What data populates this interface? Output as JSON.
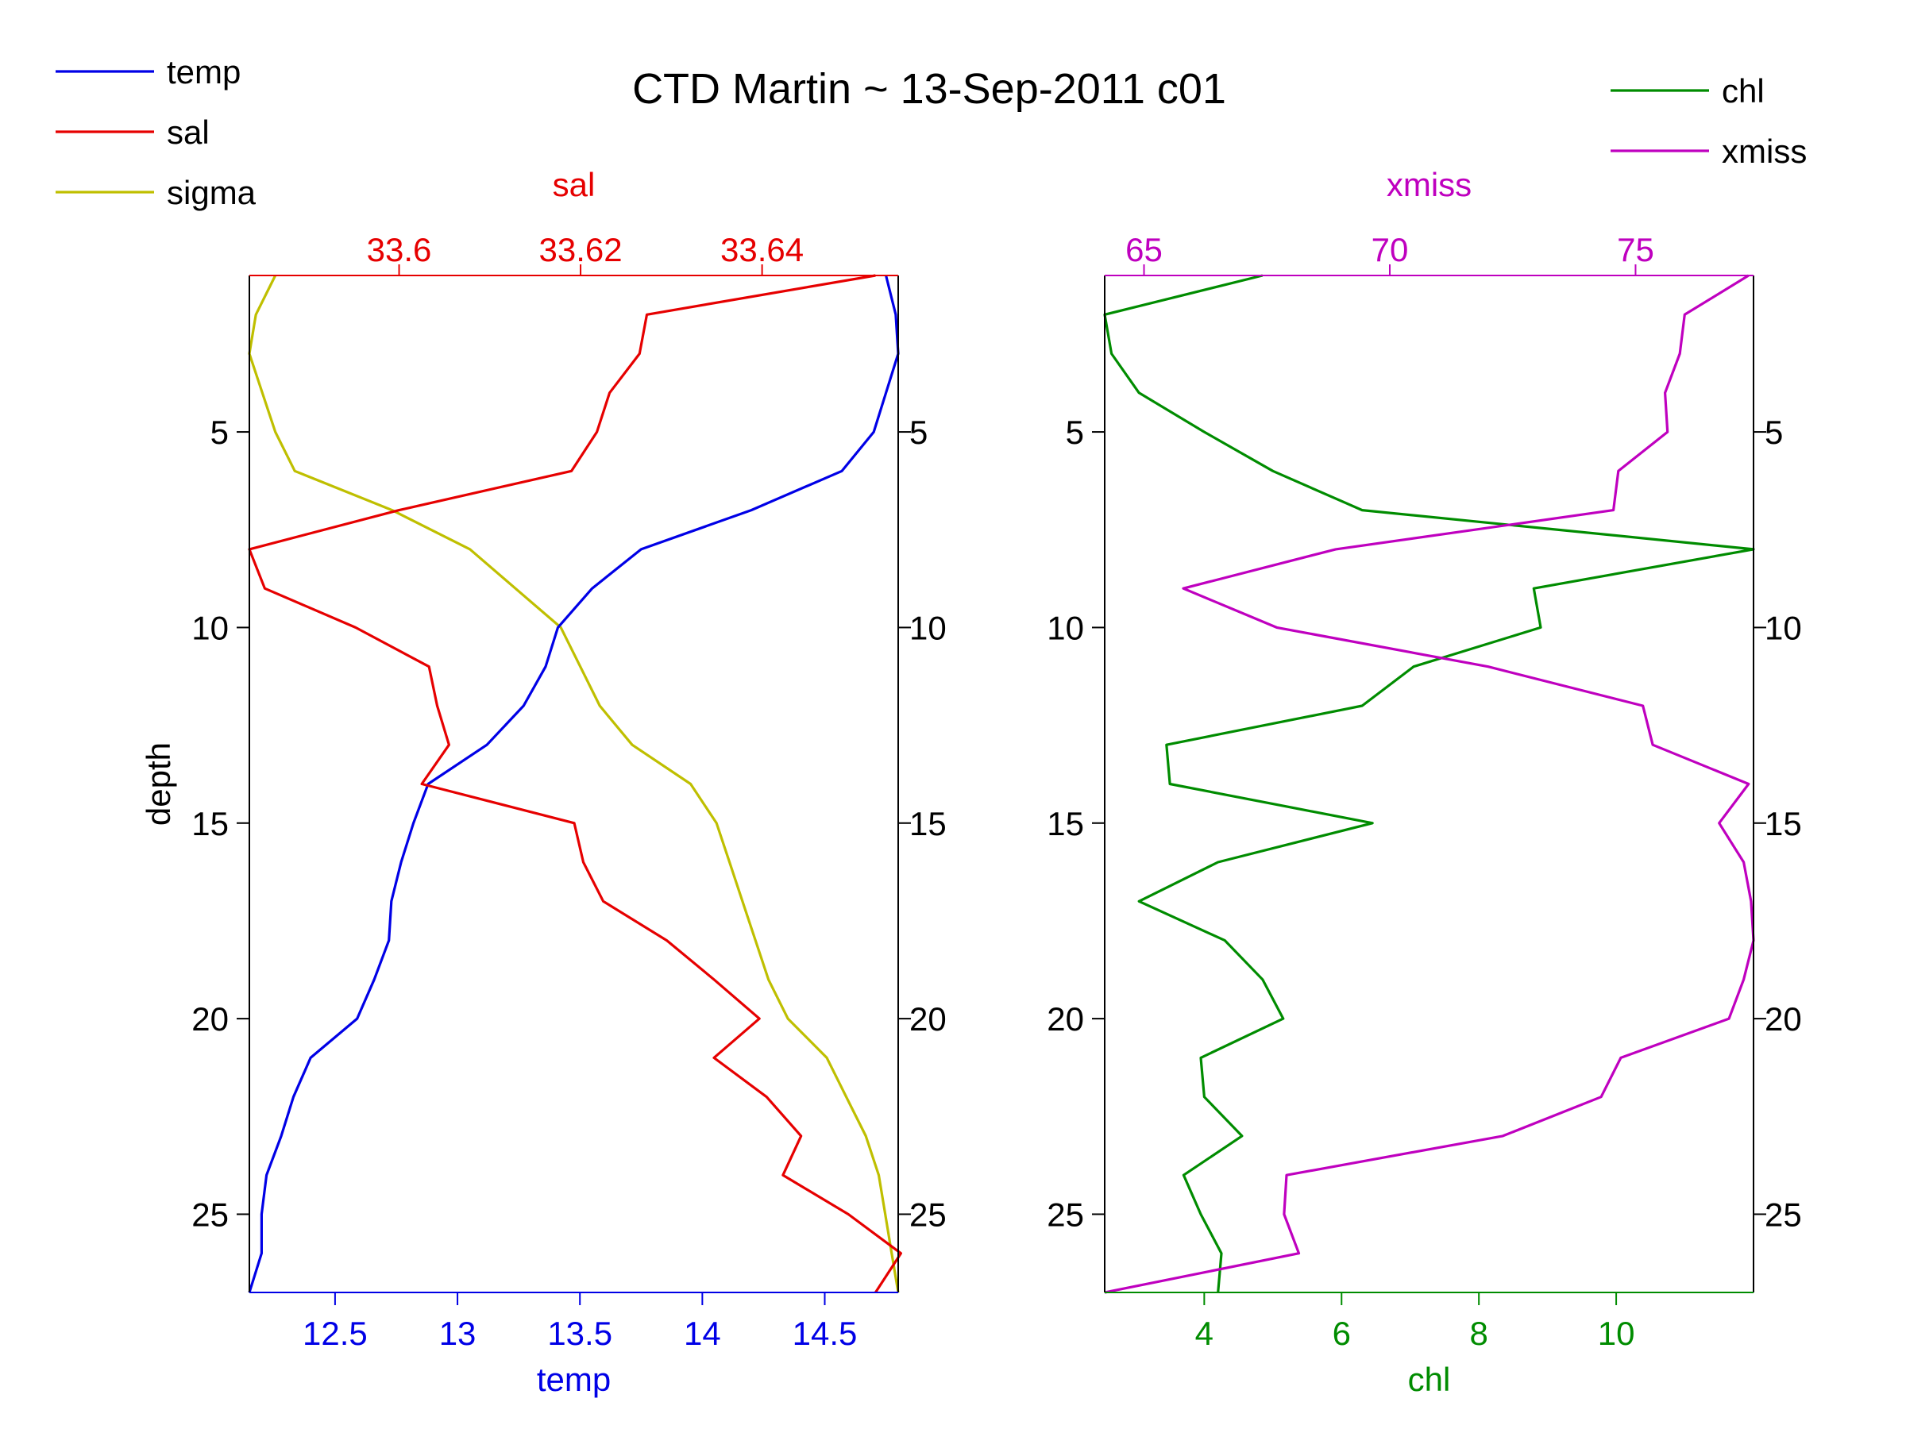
{
  "title": "CTD Martin ~ 13-Sep-2011 c01",
  "colors": {
    "temp": "#0000e6",
    "sal": "#e60000",
    "sigma": "#bfbf00",
    "chl": "#008c00",
    "xmiss": "#bf00bf",
    "axis": "#000000"
  },
  "legend_left": [
    {
      "label": "temp",
      "color": "#0000e6"
    },
    {
      "label": "sal",
      "color": "#e60000"
    },
    {
      "label": "sigma",
      "color": "#bfbf00"
    }
  ],
  "legend_right": [
    {
      "label": "chl",
      "color": "#008c00"
    },
    {
      "label": "xmiss",
      "color": "#bf00bf"
    }
  ],
  "chart_data": [
    {
      "type": "line",
      "orientation": "profile",
      "ylabel": "depth",
      "ylim": [
        1,
        27
      ],
      "y_ticks": [
        5,
        10,
        15,
        20,
        25
      ],
      "y_reversed": true,
      "bottom_axis": {
        "label": "temp",
        "lim": [
          12.15,
          14.8
        ],
        "ticks": [
          "12.5",
          "13",
          "13.5",
          "14",
          "14.5"
        ],
        "tick_values": [
          12.5,
          13,
          13.5,
          14,
          14.5
        ]
      },
      "top_axis": {
        "label": "sal",
        "lim": [
          33.5835,
          33.655
        ],
        "ticks": [
          "33.6",
          "33.62",
          "33.64"
        ],
        "tick_values": [
          33.6,
          33.62,
          33.64
        ]
      },
      "series": [
        {
          "name": "temp",
          "axis": "bottom",
          "depth": [
            1,
            2,
            3,
            4,
            5,
            6,
            7,
            8,
            9,
            10,
            11,
            12,
            13,
            14,
            15,
            16,
            17,
            18,
            19,
            20,
            21,
            22,
            23,
            24,
            25,
            26,
            27
          ],
          "values": [
            14.75,
            14.79,
            14.8,
            14.75,
            14.7,
            14.57,
            14.2,
            13.75,
            13.55,
            13.41,
            13.36,
            13.27,
            13.12,
            12.88,
            12.82,
            12.77,
            12.73,
            12.72,
            12.66,
            12.59,
            12.4,
            12.33,
            12.28,
            12.22,
            12.2,
            12.2,
            12.15
          ]
        },
        {
          "name": "sal",
          "axis": "top",
          "depth": [
            1,
            2,
            3,
            4,
            5,
            6,
            7,
            8,
            9,
            10,
            11,
            12,
            13,
            14,
            15,
            16,
            17,
            18,
            19,
            20,
            21,
            22,
            23,
            24,
            25,
            26,
            27
          ],
          "values": [
            33.6525,
            33.6273,
            33.6265,
            33.6232,
            33.6218,
            33.619,
            33.6,
            33.5835,
            33.5852,
            33.5952,
            33.6033,
            33.6042,
            33.6055,
            33.6025,
            33.6193,
            33.6203,
            33.6225,
            33.6295,
            33.6347,
            33.6397,
            33.6347,
            33.6405,
            33.6443,
            33.6423,
            33.6495,
            33.6553,
            33.6525
          ]
        },
        {
          "name": "sigma",
          "axis": "relative",
          "depth": [
            1,
            2,
            3,
            4,
            5,
            6,
            7,
            8,
            9,
            10,
            11,
            12,
            13,
            14,
            15,
            16,
            17,
            18,
            19,
            20,
            21,
            22,
            23,
            24,
            25,
            26,
            27
          ],
          "values": [
            0.04,
            0.01,
            0.0,
            0.02,
            0.04,
            0.07,
            0.22,
            0.34,
            0.41,
            0.48,
            0.51,
            0.54,
            0.59,
            0.68,
            0.72,
            0.74,
            0.76,
            0.78,
            0.8,
            0.83,
            0.89,
            0.92,
            0.95,
            0.97,
            0.98,
            0.99,
            1.0
          ]
        }
      ]
    },
    {
      "type": "line",
      "orientation": "profile",
      "ylabel": "",
      "ylim": [
        1,
        27
      ],
      "y_ticks": [
        5,
        10,
        15,
        20,
        25
      ],
      "y_reversed": true,
      "bottom_axis": {
        "label": "chl",
        "lim": [
          2.55,
          12.0
        ],
        "ticks": [
          "4",
          "6",
          "8",
          "10"
        ],
        "tick_values": [
          4,
          6,
          8,
          10
        ]
      },
      "top_axis": {
        "label": "xmiss",
        "lim": [
          64.2,
          77.4
        ],
        "ticks": [
          "65",
          "70",
          "75"
        ],
        "tick_values": [
          65,
          70,
          75
        ]
      },
      "series": [
        {
          "name": "chl",
          "axis": "bottom",
          "depth": [
            1,
            2,
            3,
            4,
            5,
            6,
            7,
            8,
            9,
            10,
            11,
            12,
            13,
            14,
            15,
            16,
            17,
            18,
            19,
            20,
            21,
            22,
            23,
            24,
            25,
            26,
            27
          ],
          "values": [
            4.85,
            2.55,
            2.65,
            3.05,
            4.0,
            5.0,
            6.3,
            12.0,
            8.8,
            8.9,
            7.05,
            6.3,
            3.45,
            3.5,
            6.45,
            4.2,
            3.05,
            4.3,
            4.85,
            5.15,
            3.95,
            4.0,
            4.55,
            3.7,
            3.95,
            4.25,
            4.2
          ]
        },
        {
          "name": "xmiss",
          "axis": "top",
          "depth": [
            1,
            2,
            3,
            4,
            5,
            6,
            7,
            8,
            9,
            10,
            11,
            12,
            13,
            14,
            15,
            16,
            17,
            18,
            19,
            20,
            21,
            22,
            23,
            24,
            25,
            26,
            27
          ],
          "values": [
            77.3,
            76.0,
            75.9,
            75.6,
            75.65,
            74.65,
            74.55,
            68.9,
            65.8,
            67.7,
            72.0,
            75.15,
            75.35,
            77.3,
            76.7,
            77.2,
            77.35,
            77.4,
            77.2,
            76.9,
            74.7,
            74.3,
            72.3,
            67.9,
            67.85,
            68.15,
            64.2
          ]
        }
      ]
    }
  ]
}
